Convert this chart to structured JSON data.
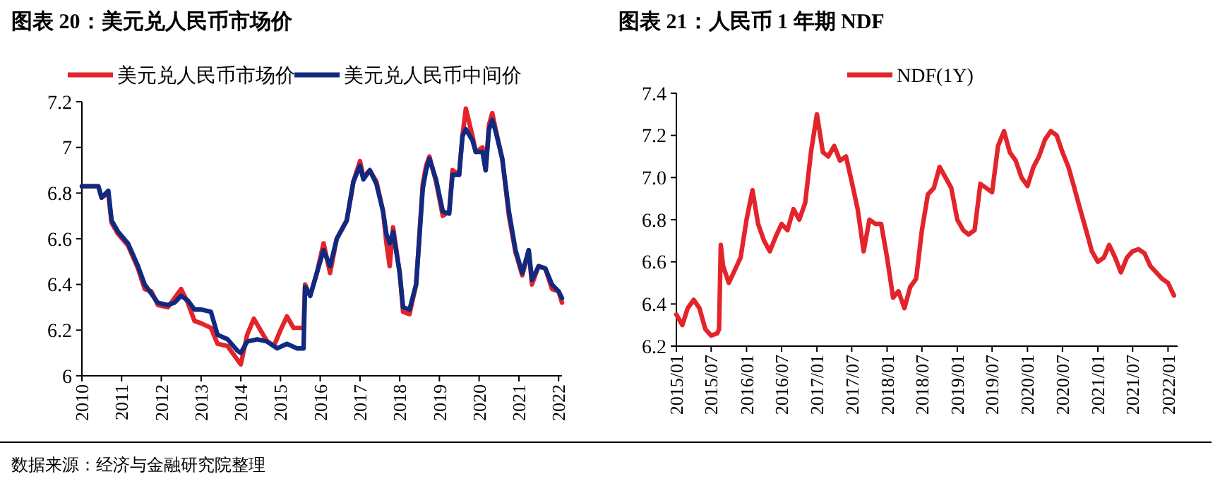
{
  "chart_data": [
    {
      "type": "line",
      "title": "图表 20：美元兑人民币市场价",
      "legend": "top",
      "xlim": [
        "2010-01",
        "2022-02"
      ],
      "xticks": [
        {
          "value": "2010",
          "label": "2010"
        },
        {
          "value": "2011",
          "label": "2011"
        },
        {
          "value": "2012",
          "label": "2012"
        },
        {
          "value": "2013",
          "label": "2013"
        },
        {
          "value": "2014",
          "label": "2014"
        },
        {
          "value": "2015",
          "label": "2015"
        },
        {
          "value": "2016",
          "label": "2016"
        },
        {
          "value": "2017",
          "label": "2017"
        },
        {
          "value": "2018",
          "label": "2018"
        },
        {
          "value": "2019",
          "label": "2019"
        },
        {
          "value": "2020",
          "label": "2020"
        },
        {
          "value": "2021",
          "label": "2021"
        },
        {
          "value": "2022",
          "label": "2022"
        }
      ],
      "ylim": [
        6,
        7.2
      ],
      "yticks": [
        6,
        6.2,
        6.4,
        6.6,
        6.8,
        7,
        7.2
      ],
      "series": [
        {
          "name": "美元兑人民币市场价",
          "color": "#e3242b",
          "x": [
            "2010-01",
            "2010-06",
            "2010-07",
            "2010-09",
            "2010-10",
            "2010-12",
            "2011-03",
            "2011-06",
            "2011-08",
            "2011-10",
            "2011-12",
            "2012-03",
            "2012-05",
            "2012-07",
            "2012-09",
            "2012-11",
            "2013-01",
            "2013-04",
            "2013-06",
            "2013-09",
            "2013-12",
            "2014-01",
            "2014-03",
            "2014-05",
            "2014-07",
            "2014-09",
            "2014-11",
            "2015-01",
            "2015-03",
            "2015-05",
            "2015-08",
            "2015-08-15",
            "2015-10",
            "2015-12",
            "2016-02",
            "2016-04",
            "2016-06",
            "2016-09",
            "2016-11",
            "2017-01",
            "2017-02",
            "2017-04",
            "2017-06",
            "2017-08",
            "2017-09",
            "2017-10",
            "2017-11",
            "2018-01",
            "2018-02",
            "2018-04",
            "2018-06",
            "2018-08",
            "2018-09",
            "2018-10",
            "2018-12",
            "2019-02",
            "2019-04",
            "2019-05",
            "2019-07",
            "2019-08",
            "2019-09",
            "2019-11",
            "2019-12",
            "2020-02",
            "2020-03",
            "2020-04",
            "2020-05",
            "2020-06",
            "2020-08",
            "2020-10",
            "2020-12",
            "2021-02",
            "2021-04",
            "2021-05",
            "2021-07",
            "2021-09",
            "2021-11",
            "2022-01",
            "2022-02"
          ],
          "values": [
            6.83,
            6.83,
            6.78,
            6.8,
            6.67,
            6.62,
            6.57,
            6.47,
            6.38,
            6.37,
            6.31,
            6.3,
            6.34,
            6.38,
            6.32,
            6.24,
            6.23,
            6.21,
            6.14,
            6.13,
            6.07,
            6.05,
            6.18,
            6.25,
            6.2,
            6.15,
            6.13,
            6.2,
            6.26,
            6.21,
            6.21,
            6.4,
            6.35,
            6.45,
            6.58,
            6.45,
            6.6,
            6.68,
            6.85,
            6.94,
            6.87,
            6.9,
            6.85,
            6.72,
            6.58,
            6.48,
            6.65,
            6.45,
            6.28,
            6.27,
            6.4,
            6.84,
            6.92,
            6.96,
            6.85,
            6.7,
            6.72,
            6.9,
            6.88,
            7.05,
            7.17,
            7.05,
            6.98,
            7.0,
            6.9,
            7.1,
            7.15,
            7.08,
            6.95,
            6.7,
            6.54,
            6.44,
            6.55,
            6.4,
            6.48,
            6.47,
            6.38,
            6.37,
            6.32
          ]
        },
        {
          "name": "美元兑人民币中间价",
          "color": "#0f2a80",
          "x": [
            "2010-01",
            "2010-06",
            "2010-07",
            "2010-09",
            "2010-10",
            "2010-12",
            "2011-03",
            "2011-06",
            "2011-08",
            "2011-10",
            "2011-12",
            "2012-03",
            "2012-05",
            "2012-07",
            "2012-09",
            "2012-11",
            "2013-01",
            "2013-04",
            "2013-06",
            "2013-09",
            "2013-12",
            "2014-01",
            "2014-03",
            "2014-06",
            "2014-09",
            "2014-12",
            "2015-03",
            "2015-06",
            "2015-08",
            "2015-08-15",
            "2015-10",
            "2015-12",
            "2016-02",
            "2016-04",
            "2016-06",
            "2016-09",
            "2016-11",
            "2017-01",
            "2017-02",
            "2017-04",
            "2017-06",
            "2017-08",
            "2017-09",
            "2017-10",
            "2017-11",
            "2018-01",
            "2018-02",
            "2018-04",
            "2018-06",
            "2018-08",
            "2018-09",
            "2018-10",
            "2018-12",
            "2019-02",
            "2019-04",
            "2019-05",
            "2019-07",
            "2019-08",
            "2019-09",
            "2019-11",
            "2019-12",
            "2020-02",
            "2020-03",
            "2020-04",
            "2020-05",
            "2020-06",
            "2020-08",
            "2020-10",
            "2020-12",
            "2021-02",
            "2021-04",
            "2021-05",
            "2021-07",
            "2021-09",
            "2021-11",
            "2022-01",
            "2022-02"
          ],
          "values": [
            6.83,
            6.83,
            6.78,
            6.81,
            6.68,
            6.63,
            6.58,
            6.48,
            6.4,
            6.36,
            6.32,
            6.31,
            6.32,
            6.35,
            6.33,
            6.29,
            6.29,
            6.28,
            6.18,
            6.16,
            6.11,
            6.1,
            6.15,
            6.16,
            6.15,
            6.12,
            6.14,
            6.12,
            6.12,
            6.39,
            6.35,
            6.45,
            6.55,
            6.48,
            6.6,
            6.68,
            6.85,
            6.92,
            6.86,
            6.9,
            6.84,
            6.72,
            6.62,
            6.58,
            6.63,
            6.45,
            6.3,
            6.29,
            6.4,
            6.82,
            6.9,
            6.95,
            6.86,
            6.72,
            6.71,
            6.88,
            6.88,
            7.05,
            7.08,
            7.03,
            6.98,
            6.98,
            6.9,
            7.08,
            7.12,
            7.07,
            6.95,
            6.72,
            6.55,
            6.45,
            6.55,
            6.42,
            6.48,
            6.47,
            6.4,
            6.37,
            6.34
          ]
        }
      ]
    },
    {
      "type": "line",
      "title": "图表 21：人民币 1 年期 NDF",
      "legend": "top",
      "xlim": [
        "2015-01",
        "2022-02-20"
      ],
      "xticks": [
        {
          "value": "2015-01",
          "label": "2015/01"
        },
        {
          "value": "2015-07",
          "label": "2015/07"
        },
        {
          "value": "2016-01",
          "label": "2016/01"
        },
        {
          "value": "2016-07",
          "label": "2016/07"
        },
        {
          "value": "2017-01",
          "label": "2017/01"
        },
        {
          "value": "2017-07",
          "label": "2017/07"
        },
        {
          "value": "2018-01",
          "label": "2018/01"
        },
        {
          "value": "2018-07",
          "label": "2018/07"
        },
        {
          "value": "2019-01",
          "label": "2019/01"
        },
        {
          "value": "2019-07",
          "label": "2019/07"
        },
        {
          "value": "2020-01",
          "label": "2020/01"
        },
        {
          "value": "2020-07",
          "label": "2020/07"
        },
        {
          "value": "2021-01",
          "label": "2021/01"
        },
        {
          "value": "2021-07",
          "label": "2021/07"
        },
        {
          "value": "2022-01",
          "label": "2022/01"
        }
      ],
      "ylim": [
        6.2,
        7.4
      ],
      "yticks": [
        6.2,
        6.4,
        6.6,
        6.8,
        {
          "value": 7,
          "label": "7.0"
        },
        7.2,
        7.4
      ],
      "series": [
        {
          "name": "NDF(1Y)",
          "color": "#e3242b",
          "x": [
            "2015-01",
            "2015-02",
            "2015-03",
            "2015-04",
            "2015-05",
            "2015-06",
            "2015-07",
            "2015-08",
            "2015-08-11",
            "2015-08-20",
            "2015-09",
            "2015-10",
            "2015-12",
            "2016-01",
            "2016-02",
            "2016-03",
            "2016-04",
            "2016-05",
            "2016-06",
            "2016-07",
            "2016-08",
            "2016-09",
            "2016-10",
            "2016-11",
            "2016-12",
            "2017-01",
            "2017-02",
            "2017-03",
            "2017-04",
            "2017-05",
            "2017-06",
            "2017-07",
            "2017-08",
            "2017-09",
            "2017-10",
            "2017-11",
            "2017-12",
            "2018-01",
            "2018-02",
            "2018-03",
            "2018-04",
            "2018-05",
            "2018-06",
            "2018-07",
            "2018-08",
            "2018-09",
            "2018-10",
            "2018-11",
            "2018-12",
            "2019-01",
            "2019-02",
            "2019-03",
            "2019-04",
            "2019-05",
            "2019-06",
            "2019-07",
            "2019-08",
            "2019-09",
            "2019-10",
            "2019-11",
            "2019-12",
            "2020-01",
            "2020-02",
            "2020-03",
            "2020-04",
            "2020-05",
            "2020-06",
            "2020-07",
            "2020-08",
            "2020-09",
            "2020-10",
            "2020-11",
            "2020-12",
            "2021-01",
            "2021-02",
            "2021-03",
            "2021-04",
            "2021-05",
            "2021-06",
            "2021-07",
            "2021-08",
            "2021-09",
            "2021-10",
            "2021-11",
            "2021-12",
            "2022-01",
            "2022-02"
          ],
          "values": [
            6.35,
            6.3,
            6.38,
            6.42,
            6.38,
            6.28,
            6.25,
            6.26,
            6.28,
            6.68,
            6.58,
            6.5,
            6.62,
            6.8,
            6.94,
            6.78,
            6.7,
            6.65,
            6.72,
            6.78,
            6.75,
            6.85,
            6.8,
            6.88,
            7.12,
            7.3,
            7.12,
            7.1,
            7.15,
            7.08,
            7.1,
            6.98,
            6.85,
            6.65,
            6.8,
            6.78,
            6.78,
            6.62,
            6.43,
            6.46,
            6.38,
            6.48,
            6.52,
            6.75,
            6.92,
            6.95,
            7.05,
            7.0,
            6.95,
            6.8,
            6.75,
            6.73,
            6.75,
            6.97,
            6.95,
            6.93,
            7.15,
            7.22,
            7.12,
            7.08,
            7.0,
            6.96,
            7.05,
            7.1,
            7.18,
            7.22,
            7.2,
            7.12,
            7.05,
            6.95,
            6.85,
            6.75,
            6.65,
            6.6,
            6.62,
            6.68,
            6.62,
            6.55,
            6.62,
            6.65,
            6.66,
            6.64,
            6.58,
            6.55,
            6.52,
            6.5,
            6.44
          ]
        }
      ],
      "annotations": [
        "数据来源：经济与金融研究院整理"
      ]
    }
  ]
}
